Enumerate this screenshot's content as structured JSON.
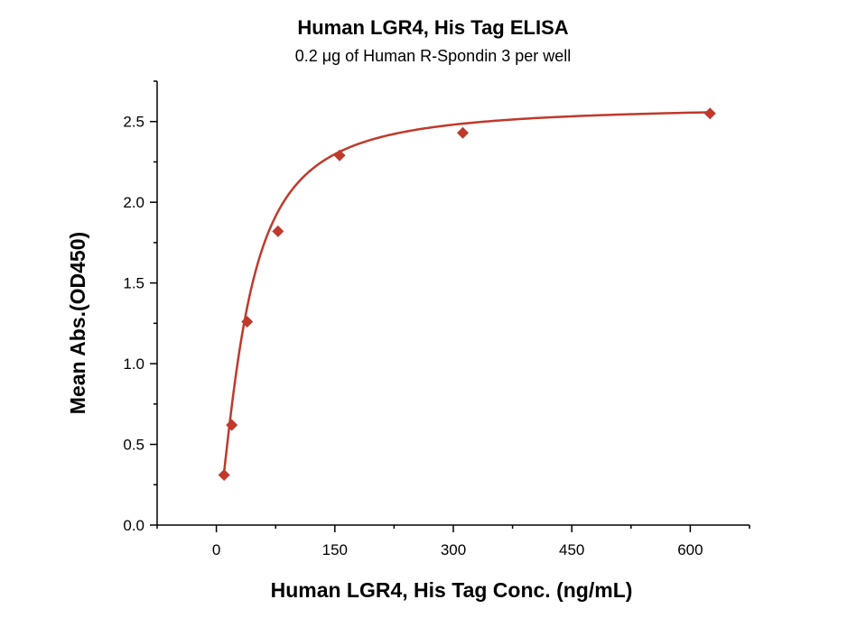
{
  "chart_data": {
    "type": "scatter",
    "title": "Human LGR4, His Tag ELISA",
    "subtitle": "0.2 μg of Human R-Spondin 3 per well",
    "xlabel": "Human LGR4, His Tag Conc. (ng/mL)",
    "ylabel": "Mean Abs.(OD450)",
    "xlim": [
      -75,
      675
    ],
    "ylim": [
      0,
      2.75
    ],
    "xticks": [
      0,
      150,
      300,
      450,
      600
    ],
    "yticks": [
      0.0,
      0.5,
      1.0,
      1.5,
      2.0,
      2.5
    ],
    "xtick_labels": [
      "0",
      "150",
      "300",
      "450",
      "600"
    ],
    "ytick_labels": [
      "0.0",
      "0.5",
      "1.0",
      "1.5",
      "2.0",
      "2.5"
    ],
    "grid": false,
    "series": [
      {
        "marker": "diamond",
        "color": "#c0392b",
        "x": [
          9.8,
          19.5,
          39,
          78,
          156,
          312,
          625
        ],
        "y": [
          0.31,
          0.62,
          1.26,
          1.82,
          2.29,
          2.43,
          2.55
        ]
      }
    ],
    "fit_curve": {
      "model": "4PL",
      "color": "#c0392b",
      "bottom": 0.0,
      "top": 2.6,
      "ec50": 37,
      "hill": 1.45,
      "x_start": 9.8,
      "x_end": 625
    }
  }
}
